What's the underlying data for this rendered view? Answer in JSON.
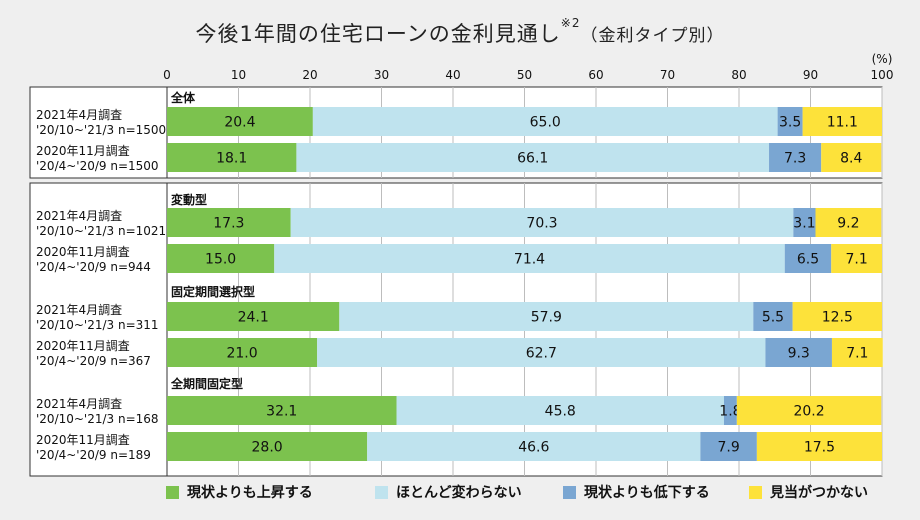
{
  "title": {
    "main": "今後1年間の住宅ローンの金利見通し",
    "note": "※2",
    "sub": "（金利タイプ別）"
  },
  "axis_unit": "(%)",
  "colors": {
    "up": "#7cc24e",
    "same": "#bfe3ee",
    "down": "#7aa6d2",
    "unknown": "#fde23a"
  },
  "legend": [
    {
      "label": "現状よりも上昇する",
      "color": "#7cc24e"
    },
    {
      "label": "ほとんど変わらない",
      "color": "#bfe3ee"
    },
    {
      "label": "現状よりも低下する",
      "color": "#7aa6d2"
    },
    {
      "label": "見当がつかない",
      "color": "#fde23a"
    }
  ],
  "chart_data": {
    "type": "bar",
    "stacked": true,
    "orientation": "horizontal",
    "xlim": [
      0,
      100
    ],
    "xticks": [
      "0",
      "10",
      "20",
      "30",
      "40",
      "50",
      "60",
      "70",
      "80",
      "90",
      "100"
    ],
    "groups": [
      {
        "name": "全体",
        "rows": [
          {
            "label1": "2021年4月調査",
            "label2": "'20/10~'21/3 n=1500",
            "values": [
              20.4,
              65.0,
              3.5,
              11.1
            ],
            "texts": [
              "20.4",
              "65.0",
              "3.5",
              "11.1"
            ]
          },
          {
            "label1": "2020年11月調査",
            "label2": "'20/4~'20/9 n=1500",
            "values": [
              18.1,
              66.1,
              7.3,
              8.4
            ],
            "texts": [
              "18.1",
              "66.1",
              "7.3",
              "8.4"
            ]
          }
        ]
      },
      {
        "name": "変動型",
        "rows": [
          {
            "label1": "2021年4月調査",
            "label2": "'20/10~'21/3 n=1021",
            "values": [
              17.3,
              70.3,
              3.1,
              9.2
            ],
            "texts": [
              "17.3",
              "70.3",
              "3.1",
              "9.2"
            ]
          },
          {
            "label1": "2020年11月調査",
            "label2": "'20/4~'20/9 n=944",
            "values": [
              15.0,
              71.4,
              6.5,
              7.1
            ],
            "texts": [
              "15.0",
              "71.4",
              "6.5",
              "7.1"
            ]
          }
        ]
      },
      {
        "name": "固定期間選択型",
        "rows": [
          {
            "label1": "2021年4月調査",
            "label2": "'20/10~'21/3 n=311",
            "values": [
              24.1,
              57.9,
              5.5,
              12.5
            ],
            "texts": [
              "24.1",
              "57.9",
              "5.5",
              "12.5"
            ]
          },
          {
            "label1": "2020年11月調査",
            "label2": "'20/4~'20/9 n=367",
            "values": [
              21.0,
              62.7,
              9.3,
              7.1
            ],
            "texts": [
              "21.0",
              "62.7",
              "9.3",
              "7.1"
            ]
          }
        ]
      },
      {
        "name": "全期間固定型",
        "rows": [
          {
            "label1": "2021年4月調査",
            "label2": "'20/10~'21/3 n=168",
            "values": [
              32.1,
              45.8,
              1.8,
              20.2
            ],
            "texts": [
              "32.1",
              "45.8",
              "1.8",
              "20.2"
            ]
          },
          {
            "label1": "2020年11月調査",
            "label2": "'20/4~'20/9 n=189",
            "values": [
              28.0,
              46.6,
              7.9,
              17.5
            ],
            "texts": [
              "28.0",
              "46.6",
              "7.9",
              "17.5"
            ]
          }
        ]
      }
    ],
    "series": [
      {
        "name": "現状よりも上昇する",
        "color": "#7cc24e"
      },
      {
        "name": "ほとんど変わらない",
        "color": "#bfe3ee"
      },
      {
        "name": "現状よりも低下する",
        "color": "#7aa6d2"
      },
      {
        "name": "見当がつかない",
        "color": "#fde23a"
      }
    ],
    "legend_position": "bottom"
  }
}
